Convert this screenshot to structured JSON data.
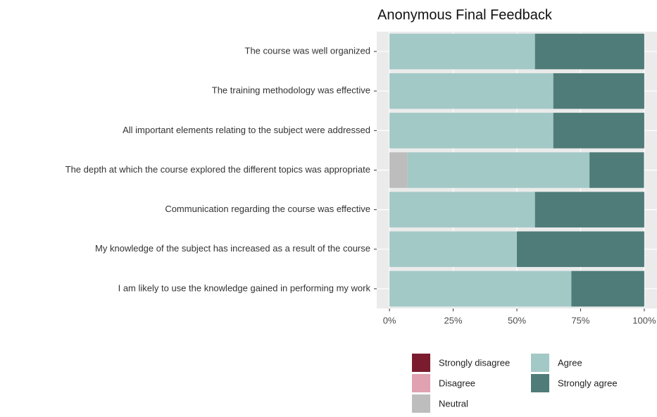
{
  "chart_data": {
    "type": "bar",
    "orientation": "horizontal",
    "stacked": true,
    "title": "Anonymous Final Feedback",
    "categories": [
      "The course was well organized",
      "The training methodology was effective",
      "All important elements relating to the subject were addressed",
      "The depth at which the course explored the different topics was appropriate",
      "Communication regarding the course was effective",
      "My knowledge of the subject has increased as a result of the course",
      "I am likely to use the knowledge gained in performing my work"
    ],
    "series": [
      {
        "name": "Strongly disagree",
        "color": "#7b1c2e",
        "values": [
          0,
          0,
          0,
          0,
          0,
          0,
          0
        ]
      },
      {
        "name": "Disagree",
        "color": "#e0a1b0",
        "values": [
          0,
          0,
          0,
          0,
          0,
          0,
          0
        ]
      },
      {
        "name": "Neutral",
        "color": "#bdbdbd",
        "values": [
          0,
          0,
          0,
          7.1,
          0,
          0,
          0
        ]
      },
      {
        "name": "Agree",
        "color": "#a3c9c7",
        "values": [
          57.1,
          64.3,
          64.3,
          71.4,
          57.1,
          50,
          71.4
        ]
      },
      {
        "name": "Strongly agree",
        "color": "#4f7c78",
        "values": [
          42.9,
          35.7,
          35.7,
          21.4,
          42.9,
          50,
          28.6
        ]
      }
    ],
    "xlim": [
      -5,
      105
    ],
    "xticks": [
      {
        "value": 0,
        "label": "0%"
      },
      {
        "value": 25,
        "label": "25%"
      },
      {
        "value": 50,
        "label": "50%"
      },
      {
        "value": 75,
        "label": "75%"
      },
      {
        "value": 100,
        "label": "100%"
      }
    ],
    "grid": true,
    "legend": "bottom"
  }
}
